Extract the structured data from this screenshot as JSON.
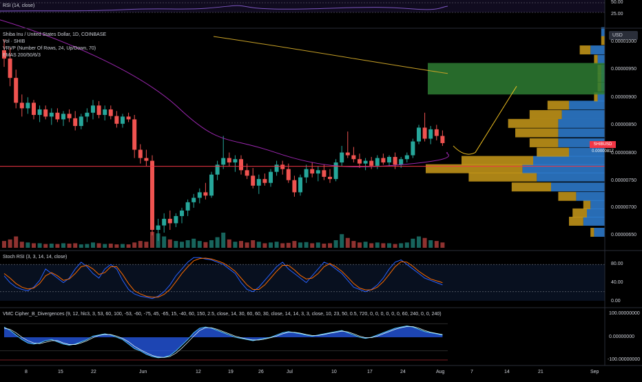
{
  "colors": {
    "up": "#26a69a",
    "down": "#ef5350",
    "ema200": "#c9a227",
    "ema50": "#9c27b0",
    "vpup": "#c99a1a",
    "vpdown": "#2f7fd4",
    "zone": "#2e7d32",
    "rsi": "#7e57c2",
    "stochK": "#2962ff",
    "stochD": "#ff6d00",
    "level": "#f23645"
  },
  "rsi": {
    "label": "RSI (14, close)",
    "ticks": [
      "50.00",
      "25.00"
    ]
  },
  "main": {
    "title": "Shiba Inu / United States Dollar, 1D, COINBASE",
    "vol_label": "Vol · SHIB",
    "vrvp_label": "VRVP (Number Of Rows, 24, Up/Down, 70)",
    "emas_label": "EMAS 200/50/6/3",
    "currency": "USD",
    "last_price_tag": "SHIBUSD",
    "last_price": "0.00000817",
    "ticks": [
      "0.00001000",
      "0.00000950",
      "0.00000900",
      "0.00000850",
      "0.00000800",
      "0.00000750",
      "0.00000700",
      "0.00000650"
    ]
  },
  "stoch": {
    "label": "Stoch RSI (3, 3, 14, 14, close)",
    "ticks": [
      "80.00",
      "40.00",
      "0.00"
    ]
  },
  "vmc": {
    "label": "VMC Cipher_B_Divergences (9, 12, hlc3, 3, 53, 60, 100, -53, -60, -75, 45, -65, 15, -40, 60, 150, 2.5, close, 14, 30, 60, 60, 30, close, 14, 14, 3, 3, close, 10, 23, 50, 0.5, 720, 0, 0, 0, 0, 0, 0, 60, 240, 0, 0, 240)",
    "ticks": [
      "100.00000000",
      "0.00000000",
      "-100.00000000"
    ]
  },
  "time_axis": [
    "8",
    "15",
    "22",
    "Jun",
    "12",
    "19",
    "26",
    "Jul",
    "10",
    "17",
    "24",
    "Aug",
    "7",
    "14",
    "21",
    "Sep"
  ],
  "chart_data": {
    "type": "candlestick",
    "title": "Shiba Inu / United States Dollar, 1D, COINBASE",
    "y_unit": "USD",
    "ylim": [
      6.2e-06,
      1.04e-05
    ],
    "candles": [
      {
        "o": 9.85e-06,
        "h": 1.005e-05,
        "l": 9.55e-06,
        "c": 9.7e-06
      },
      {
        "o": 9.7e-06,
        "h": 9.9e-06,
        "l": 9.2e-06,
        "c": 9.35e-06
      },
      {
        "o": 9.35e-06,
        "h": 9.5e-06,
        "l": 8.8e-06,
        "c": 8.9e-06
      },
      {
        "o": 8.9e-06,
        "h": 9.05e-06,
        "l": 8.65e-06,
        "c": 8.8e-06
      },
      {
        "o": 8.8e-06,
        "h": 9e-06,
        "l": 8.7e-06,
        "c": 8.9e-06
      },
      {
        "o": 8.9e-06,
        "h": 8.95e-06,
        "l": 8.6e-06,
        "c": 8.68e-06
      },
      {
        "o": 8.68e-06,
        "h": 8.85e-06,
        "l": 8.55e-06,
        "c": 8.78e-06
      },
      {
        "o": 8.78e-06,
        "h": 8.85e-06,
        "l": 8.6e-06,
        "c": 8.65e-06
      },
      {
        "o": 8.65e-06,
        "h": 8.8e-06,
        "l": 8.5e-06,
        "c": 8.72e-06
      },
      {
        "o": 8.72e-06,
        "h": 8.8e-06,
        "l": 8.55e-06,
        "c": 8.6e-06
      },
      {
        "o": 8.6e-06,
        "h": 8.75e-06,
        "l": 8.48e-06,
        "c": 8.7e-06
      },
      {
        "o": 8.7e-06,
        "h": 8.78e-06,
        "l": 8.55e-06,
        "c": 8.62e-06
      },
      {
        "o": 8.62e-06,
        "h": 8.75e-06,
        "l": 8.4e-06,
        "c": 8.48e-06
      },
      {
        "o": 8.48e-06,
        "h": 8.7e-06,
        "l": 8.42e-06,
        "c": 8.65e-06
      },
      {
        "o": 8.65e-06,
        "h": 8.8e-06,
        "l": 8.55e-06,
        "c": 8.72e-06
      },
      {
        "o": 8.72e-06,
        "h": 8.95e-06,
        "l": 8.6e-06,
        "c": 8.85e-06
      },
      {
        "o": 8.85e-06,
        "h": 8.93e-06,
        "l": 8.62e-06,
        "c": 8.68e-06
      },
      {
        "o": 8.68e-06,
        "h": 8.85e-06,
        "l": 8.58e-06,
        "c": 8.78e-06
      },
      {
        "o": 8.78e-06,
        "h": 8.85e-06,
        "l": 8.6e-06,
        "c": 8.66e-06
      },
      {
        "o": 8.66e-06,
        "h": 8.75e-06,
        "l": 8.45e-06,
        "c": 8.52e-06
      },
      {
        "o": 8.52e-06,
        "h": 8.7e-06,
        "l": 8.45e-06,
        "c": 8.65e-06
      },
      {
        "o": 8.65e-06,
        "h": 8.72e-06,
        "l": 8.55e-06,
        "c": 8.6e-06
      },
      {
        "o": 8.6e-06,
        "h": 8.68e-06,
        "l": 7.9e-06,
        "c": 8.05e-06
      },
      {
        "o": 8.05e-06,
        "h": 8.15e-06,
        "l": 7.8e-06,
        "c": 7.9e-06
      },
      {
        "o": 7.9e-06,
        "h": 8.05e-06,
        "l": 7.75e-06,
        "c": 7.85e-06
      },
      {
        "o": 7.85e-06,
        "h": 7.95e-06,
        "l": 6.5e-06,
        "c": 6.6e-06
      },
      {
        "o": 6.6e-06,
        "h": 6.8e-06,
        "l": 6.4e-06,
        "c": 6.68e-06
      },
      {
        "o": 6.68e-06,
        "h": 6.9e-06,
        "l": 6.55e-06,
        "c": 6.8e-06
      },
      {
        "o": 6.8e-06,
        "h": 6.95e-06,
        "l": 6.6e-06,
        "c": 6.72e-06
      },
      {
        "o": 6.72e-06,
        "h": 6.9e-06,
        "l": 6.65e-06,
        "c": 6.85e-06
      },
      {
        "o": 6.85e-06,
        "h": 7e-06,
        "l": 6.72e-06,
        "c": 6.95e-06
      },
      {
        "o": 6.95e-06,
        "h": 7.15e-06,
        "l": 6.85e-06,
        "c": 7.1e-06
      },
      {
        "o": 7.1e-06,
        "h": 7.25e-06,
        "l": 7e-06,
        "c": 7.18e-06
      },
      {
        "o": 7.18e-06,
        "h": 7.35e-06,
        "l": 7.08e-06,
        "c": 7.28e-06
      },
      {
        "o": 7.28e-06,
        "h": 7.45e-06,
        "l": 7.15e-06,
        "c": 7.22e-06
      },
      {
        "o": 7.22e-06,
        "h": 7.65e-06,
        "l": 7.18e-06,
        "c": 7.6e-06
      },
      {
        "o": 7.6e-06,
        "h": 7.85e-06,
        "l": 7.5e-06,
        "c": 7.78e-06
      },
      {
        "o": 7.78e-06,
        "h": 8.3e-06,
        "l": 7.7e-06,
        "c": 7.9e-06
      },
      {
        "o": 7.9e-06,
        "h": 8e-06,
        "l": 7.75e-06,
        "c": 7.82e-06
      },
      {
        "o": 7.82e-06,
        "h": 7.95e-06,
        "l": 7.65e-06,
        "c": 7.88e-06
      },
      {
        "o": 7.88e-06,
        "h": 7.95e-06,
        "l": 7.6e-06,
        "c": 7.68e-06
      },
      {
        "o": 7.68e-06,
        "h": 7.8e-06,
        "l": 7.52e-06,
        "c": 7.58e-06
      },
      {
        "o": 7.58e-06,
        "h": 7.72e-06,
        "l": 7.35e-06,
        "c": 7.4e-06
      },
      {
        "o": 7.4e-06,
        "h": 7.6e-06,
        "l": 7.25e-06,
        "c": 7.52e-06
      },
      {
        "o": 7.52e-06,
        "h": 7.62e-06,
        "l": 7.4e-06,
        "c": 7.45e-06
      },
      {
        "o": 7.45e-06,
        "h": 7.7e-06,
        "l": 7.38e-06,
        "c": 7.65e-06
      },
      {
        "o": 7.65e-06,
        "h": 7.85e-06,
        "l": 7.58e-06,
        "c": 7.78e-06
      },
      {
        "o": 7.78e-06,
        "h": 7.85e-06,
        "l": 7.6e-06,
        "c": 7.7e-06
      },
      {
        "o": 7.7e-06,
        "h": 7.8e-06,
        "l": 7.45e-06,
        "c": 7.5e-06
      },
      {
        "o": 7.5e-06,
        "h": 7.58e-06,
        "l": 7.2e-06,
        "c": 7.28e-06
      },
      {
        "o": 7.28e-06,
        "h": 7.6e-06,
        "l": 7.22e-06,
        "c": 7.55e-06
      },
      {
        "o": 7.55e-06,
        "h": 7.78e-06,
        "l": 7.45e-06,
        "c": 7.7e-06
      },
      {
        "o": 7.7e-06,
        "h": 7.82e-06,
        "l": 7.55e-06,
        "c": 7.62e-06
      },
      {
        "o": 7.62e-06,
        "h": 7.75e-06,
        "l": 7.48e-06,
        "c": 7.68e-06
      },
      {
        "o": 7.68e-06,
        "h": 7.78e-06,
        "l": 7.5e-06,
        "c": 7.56e-06
      },
      {
        "o": 7.56e-06,
        "h": 7.7e-06,
        "l": 7.45e-06,
        "c": 7.52e-06
      },
      {
        "o": 7.52e-06,
        "h": 7.88e-06,
        "l": 7.48e-06,
        "c": 7.82e-06
      },
      {
        "o": 7.82e-06,
        "h": 8.12e-06,
        "l": 7.75e-06,
        "c": 8e-06
      },
      {
        "o": 8e-06,
        "h": 8.38e-06,
        "l": 7.9e-06,
        "c": 7.95e-06
      },
      {
        "o": 7.95e-06,
        "h": 8.1e-06,
        "l": 7.82e-06,
        "c": 7.88e-06
      },
      {
        "o": 7.88e-06,
        "h": 7.98e-06,
        "l": 7.72e-06,
        "c": 7.8e-06
      },
      {
        "o": 7.8e-06,
        "h": 7.9e-06,
        "l": 7.68e-06,
        "c": 7.85e-06
      },
      {
        "o": 7.85e-06,
        "h": 7.92e-06,
        "l": 7.7e-06,
        "c": 7.76e-06
      },
      {
        "o": 7.76e-06,
        "h": 7.95e-06,
        "l": 7.7e-06,
        "c": 7.9e-06
      },
      {
        "o": 7.9e-06,
        "h": 7.98e-06,
        "l": 7.78e-06,
        "c": 7.82e-06
      },
      {
        "o": 7.82e-06,
        "h": 7.95e-06,
        "l": 7.75e-06,
        "c": 7.92e-06
      },
      {
        "o": 7.92e-06,
        "h": 8e-06,
        "l": 7.7e-06,
        "c": 7.78e-06
      },
      {
        "o": 7.78e-06,
        "h": 7.92e-06,
        "l": 7.72e-06,
        "c": 7.88e-06
      },
      {
        "o": 7.88e-06,
        "h": 8e-06,
        "l": 7.82e-06,
        "c": 7.95e-06
      },
      {
        "o": 7.95e-06,
        "h": 8.25e-06,
        "l": 7.9e-06,
        "c": 8.2e-06
      },
      {
        "o": 8.2e-06,
        "h": 8.5e-06,
        "l": 8.15e-06,
        "c": 8.45e-06
      },
      {
        "o": 8.45e-06,
        "h": 8.72e-06,
        "l": 8.2e-06,
        "c": 8.25e-06
      },
      {
        "o": 8.25e-06,
        "h": 8.48e-06,
        "l": 8.15e-06,
        "c": 8.42e-06
      },
      {
        "o": 8.42e-06,
        "h": 8.5e-06,
        "l": 8.22e-06,
        "c": 8.3e-06
      },
      {
        "o": 8.3e-06,
        "h": 8.4e-06,
        "l": 8.12e-06,
        "c": 8.17e-06
      }
    ],
    "volume": [
      18,
      22,
      30,
      16,
      14,
      12,
      12,
      10,
      11,
      10,
      12,
      11,
      12,
      9,
      10,
      14,
      12,
      10,
      11,
      9,
      10,
      9,
      14,
      18,
      16,
      42,
      38,
      30,
      22,
      18,
      16,
      20,
      24,
      18,
      15,
      20,
      28,
      40,
      22,
      16,
      18,
      14,
      20,
      16,
      12,
      14,
      16,
      12,
      13,
      18,
      14,
      15,
      12,
      14,
      11,
      12,
      20,
      36,
      26,
      18,
      14,
      16,
      12,
      14,
      12,
      12,
      10,
      12,
      14,
      24,
      30,
      26,
      20,
      18,
      14
    ],
    "ema200": [
      [
        8.6e-06,
        9.95e-06
      ],
      [
        4.9e-05,
        9.35e-06
      ]
    ],
    "ema50": [
      [
        8.6e-06,
        9.9e-06
      ],
      [
        4.9e-05,
        7.83e-06
      ]
    ],
    "horizontal_level": 7.75e-06,
    "volume_profile": [
      {
        "price": 6.35e-06,
        "up": 0.0,
        "down": 0.0
      },
      {
        "price": 6.55e-06,
        "up": 1,
        "down": 3
      },
      {
        "price": 6.75e-06,
        "up": 4,
        "down": 6
      },
      {
        "price": 6.9e-06,
        "up": 4,
        "down": 5
      },
      {
        "price": 7.05e-06,
        "up": 2,
        "down": 4
      },
      {
        "price": 7.2e-06,
        "up": 5,
        "down": 8
      },
      {
        "price": 7.37e-06,
        "up": 11,
        "down": 15
      },
      {
        "price": 7.55e-06,
        "up": 19,
        "down": 19
      },
      {
        "price": 7.7e-06,
        "up": 27,
        "down": 23
      },
      {
        "price": 7.85e-06,
        "up": 20,
        "down": 20
      },
      {
        "price": 8e-06,
        "up": 9,
        "down": 10
      },
      {
        "price": 8.17e-06,
        "up": 8,
        "down": 13
      },
      {
        "price": 8.35e-06,
        "up": 12,
        "down": 13
      },
      {
        "price": 8.52e-06,
        "up": 14,
        "down": 13
      },
      {
        "price": 8.68e-06,
        "up": 9,
        "down": 12
      },
      {
        "price": 8.85e-06,
        "up": 6,
        "down": 10
      },
      {
        "price": 9e-06,
        "up": 1,
        "down": 2
      },
      {
        "price": 9.18e-06,
        "up": 1,
        "down": 1
      },
      {
        "price": 9.35e-06,
        "up": 1,
        "down": 1
      },
      {
        "price": 9.5e-06,
        "up": 1,
        "down": 1
      },
      {
        "price": 9.68e-06,
        "up": 1,
        "down": 2
      },
      {
        "price": 9.85e-06,
        "up": 3,
        "down": 4
      },
      {
        "price": 1.002e-05,
        "up": 1,
        "down": 0
      },
      {
        "price": 1.018e-05,
        "up": 0,
        "down": 1
      }
    ],
    "zone": {
      "from": 9.05e-06,
      "to": 9.62e-06
    },
    "stoch_k": [
      55,
      40,
      30,
      25,
      22,
      30,
      45,
      70,
      60,
      50,
      40,
      50,
      70,
      85,
      75,
      60,
      50,
      70,
      80,
      70,
      45,
      25,
      15,
      10,
      8,
      5,
      10,
      20,
      35,
      55,
      70,
      85,
      95,
      95,
      92,
      90,
      85,
      80,
      70,
      60,
      40,
      25,
      20,
      30,
      45,
      60,
      75,
      85,
      70,
      60,
      50,
      40,
      55,
      70,
      85,
      80,
      70,
      60,
      45,
      30,
      25,
      20,
      25,
      35,
      50,
      70,
      85,
      90,
      80,
      70,
      60,
      50,
      45,
      40,
      35
    ],
    "stoch_d": [
      60,
      50,
      38,
      30,
      26,
      28,
      38,
      55,
      62,
      55,
      45,
      48,
      60,
      75,
      78,
      70,
      58,
      62,
      75,
      75,
      58,
      38,
      22,
      15,
      10,
      8,
      8,
      14,
      25,
      42,
      60,
      75,
      88,
      93,
      94,
      92,
      88,
      83,
      75,
      65,
      50,
      35,
      25,
      25,
      35,
      50,
      65,
      78,
      78,
      68,
      56,
      48,
      50,
      60,
      75,
      82,
      75,
      65,
      52,
      38,
      28,
      24,
      24,
      30,
      42,
      58,
      75,
      86,
      85,
      76,
      65,
      56,
      48,
      44,
      40
    ],
    "vmc_wave1": [
      45,
      30,
      10,
      -10,
      -25,
      -30,
      -25,
      -15,
      -10,
      -20,
      -30,
      -35,
      -30,
      -20,
      -10,
      5,
      10,
      15,
      10,
      0,
      -10,
      -30,
      -50,
      -60,
      -75,
      -85,
      -90,
      -88,
      -80,
      -60,
      -35,
      -10,
      20,
      40,
      45,
      40,
      30,
      20,
      10,
      0,
      -5,
      -10,
      -15,
      -10,
      -5,
      0,
      10,
      20,
      25,
      20,
      15,
      10,
      5,
      10,
      15,
      20,
      25,
      30,
      20,
      10,
      0,
      -5,
      0,
      10,
      20,
      30,
      40,
      45,
      50,
      45,
      35,
      25,
      20,
      15,
      10
    ],
    "vmc_wave2": [
      40,
      35,
      20,
      0,
      -15,
      -25,
      -28,
      -22,
      -15,
      -15,
      -25,
      -32,
      -32,
      -25,
      -15,
      -2,
      8,
      12,
      12,
      5,
      -5,
      -20,
      -40,
      -55,
      -68,
      -80,
      -87,
      -89,
      -85,
      -70,
      -48,
      -22,
      5,
      30,
      42,
      42,
      35,
      25,
      15,
      5,
      -2,
      -8,
      -12,
      -12,
      -8,
      -2,
      5,
      15,
      22,
      22,
      18,
      12,
      8,
      8,
      12,
      18,
      22,
      27,
      24,
      15,
      5,
      -2,
      -2,
      5,
      15,
      25,
      35,
      42,
      47,
      47,
      40,
      30,
      22,
      17,
      12
    ]
  }
}
